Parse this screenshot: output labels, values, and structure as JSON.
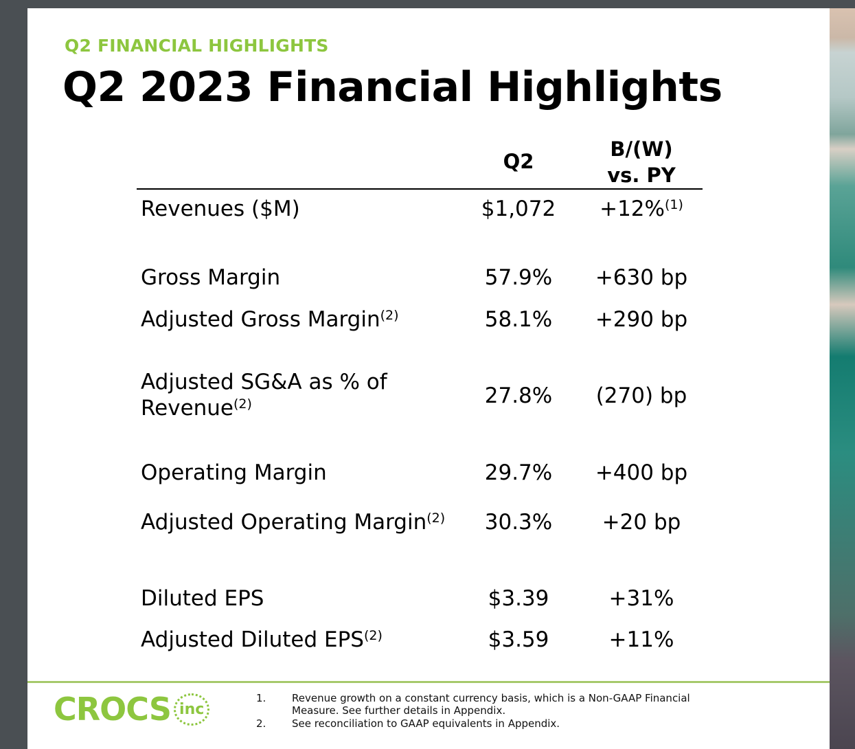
{
  "kicker": "Q2 FINANCIAL HIGHLIGHTS",
  "title": "Q2 2023 Financial Highlights",
  "columns": {
    "q2": "Q2",
    "bw_line1": "B/(W)",
    "bw_line2": "vs. PY"
  },
  "rows": [
    {
      "label": "Revenues ($M)",
      "q2": "$1,072",
      "bw": "+12%",
      "bw_note": "(1)"
    },
    {
      "label": "Gross Margin",
      "q2": "57.9%",
      "bw": "+630 bp"
    },
    {
      "label": "Adjusted Gross Margin",
      "note": "(2)",
      "q2": "58.1%",
      "bw": "+290 bp"
    },
    {
      "label": "Adjusted SG&A as % of",
      "label2": "Revenue",
      "note": "(2)",
      "q2": "27.8%",
      "bw": "(270) bp"
    },
    {
      "label": "Operating Margin",
      "q2": "29.7%",
      "bw": "+400 bp"
    },
    {
      "label": "Adjusted Operating Margin",
      "note": "(2)",
      "q2": "30.3%",
      "bw": "+20 bp"
    },
    {
      "label": "Diluted EPS",
      "q2": "$3.39",
      "bw": "+31%"
    },
    {
      "label": "Adjusted Diluted EPS",
      "note": "(2)",
      "q2": "$3.59",
      "bw": "+11%"
    }
  ],
  "logo": {
    "name": "CROCS",
    "suffix": "inc"
  },
  "footnotes": [
    {
      "num": "1.",
      "line1": "Revenue growth on a constant currency basis, which is a Non-GAAP Financial",
      "line2": "Measure. See further details in Appendix."
    },
    {
      "num": "2.",
      "line1": "See reconciliation to GAAP equivalents in Appendix."
    }
  ],
  "colors": {
    "accent": "#8dc63f",
    "background": "#4a4f53"
  }
}
